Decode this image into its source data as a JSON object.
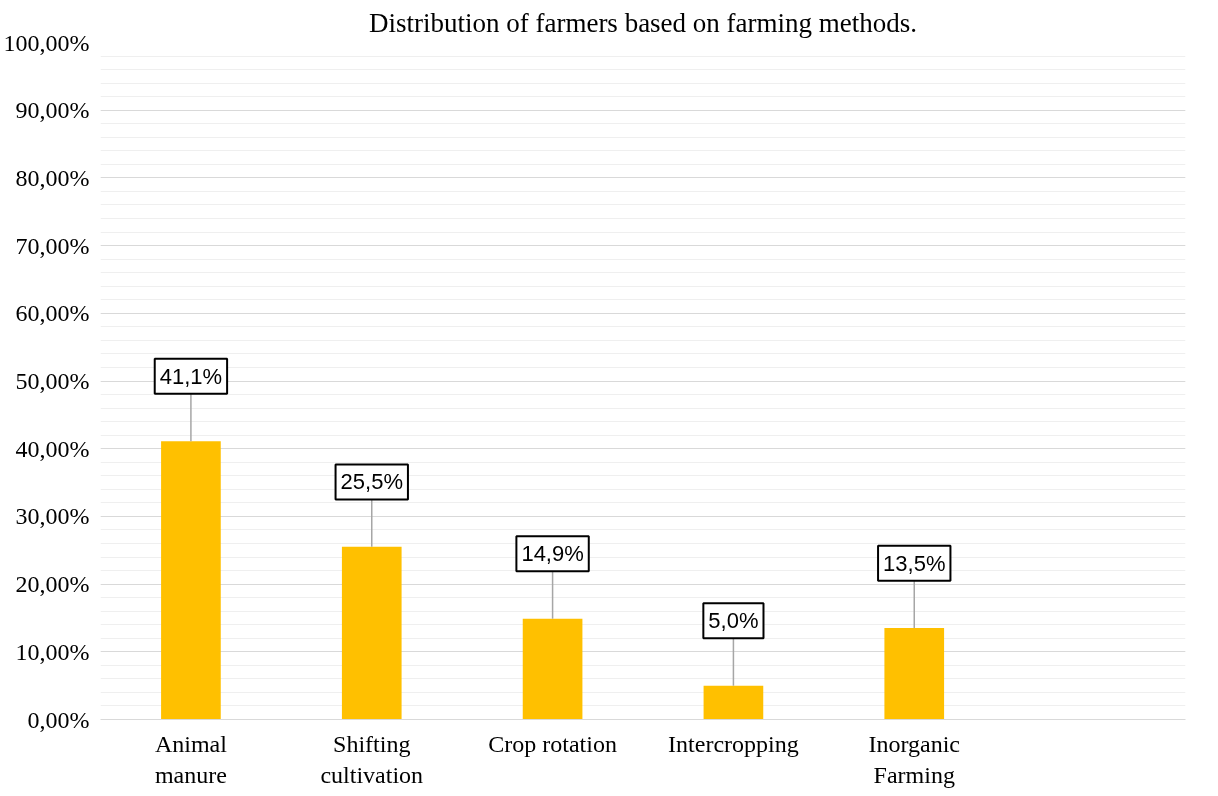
{
  "chart_data": {
    "type": "bar",
    "title": "Distribution of farmers based on farming methods.",
    "categories": [
      "Animal\nmanure",
      "Shifting\ncultivation",
      "Crop rotation",
      "Intercropping",
      "Inorganic\nFarming",
      null
    ],
    "values": [
      41.1,
      25.5,
      14.9,
      5.0,
      13.5,
      null
    ],
    "value_labels": [
      "41,1%",
      "25,5%",
      "14,9%",
      "5,0%",
      "13,5%",
      null
    ],
    "color": "#ffc000",
    "ylim": [
      0,
      100
    ],
    "yticks": [
      {
        "value": 0,
        "label": "0,00%"
      },
      {
        "value": 10,
        "label": "10,00%"
      },
      {
        "value": 20,
        "label": "20,00%"
      },
      {
        "value": 30,
        "label": "30,00%"
      },
      {
        "value": 40,
        "label": "40,00%"
      },
      {
        "value": 50,
        "label": "50,00%"
      },
      {
        "value": 60,
        "label": "60,00%"
      },
      {
        "value": 70,
        "label": "70,00%"
      },
      {
        "value": 80,
        "label": "80,00%"
      },
      {
        "value": 90,
        "label": "90,00%"
      },
      {
        "value": 100,
        "label": "100,00%"
      }
    ],
    "grid": "y"
  }
}
